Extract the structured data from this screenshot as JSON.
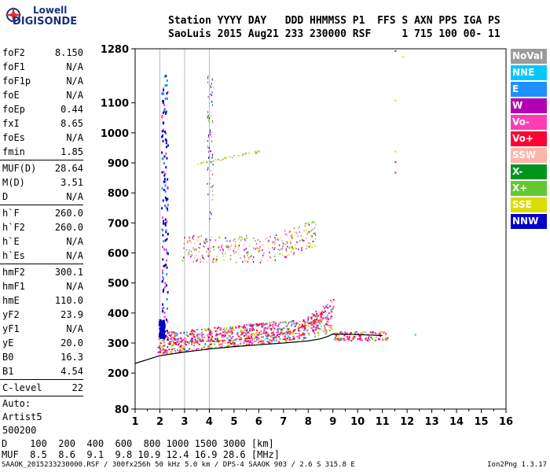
{
  "logo": {
    "line1": "Lowell",
    "line2": "DIGISONDE"
  },
  "header": {
    "labels": "Station YYYY DAY   DDD HHMMSS P1  FFS S AXN PPS IGA PS",
    "values": "SaoLuis 2015 Aug21 233 230000 RSF     1 715 100 00- 11"
  },
  "params": [
    {
      "name": "foF2",
      "value": "8.150"
    },
    {
      "name": "foF1",
      "value": "N/A"
    },
    {
      "name": "foF1p",
      "value": "N/A"
    },
    {
      "name": "foE",
      "value": "N/A"
    },
    {
      "name": "foEp",
      "value": "0.44"
    },
    {
      "name": "fxI",
      "value": "8.65"
    },
    {
      "name": "foEs",
      "value": "N/A"
    },
    {
      "name": "fmin",
      "value": "1.85"
    },
    {
      "sep": true
    },
    {
      "name": "MUF(D)",
      "value": "28.64"
    },
    {
      "name": "M(D)",
      "value": "3.51"
    },
    {
      "name": "D",
      "value": "N/A"
    },
    {
      "sep": true
    },
    {
      "name": "h`F",
      "value": "260.0"
    },
    {
      "name": "h`F2",
      "value": "260.0"
    },
    {
      "name": "h`E",
      "value": "N/A"
    },
    {
      "name": "h`Es",
      "value": "N/A"
    },
    {
      "sep": true
    },
    {
      "name": "hmF2",
      "value": "300.1"
    },
    {
      "name": "hmF1",
      "value": "N/A"
    },
    {
      "name": "hmE",
      "value": "110.0"
    },
    {
      "name": "yF2",
      "value": "23.9"
    },
    {
      "name": "yF1",
      "value": "N/A"
    },
    {
      "name": "yE",
      "value": "20.0"
    },
    {
      "name": "B0",
      "value": "16.3"
    },
    {
      "name": "B1",
      "value": "4.54"
    },
    {
      "sep": true
    },
    {
      "name": "C-level",
      "value": "22"
    },
    {
      "sep": true
    }
  ],
  "auto": [
    "Auto:",
    "Artist5",
    "500200"
  ],
  "legend": [
    {
      "label": "NoVal",
      "color": "#9b9b9b"
    },
    {
      "label": "NNE",
      "color": "#00c8ff"
    },
    {
      "label": "E",
      "color": "#1e90ff"
    },
    {
      "label": "W",
      "color": "#b400b4"
    },
    {
      "label": "Vo-",
      "color": "#ff3cb4"
    },
    {
      "label": "Vo+",
      "color": "#ff0032"
    },
    {
      "label": "SSW",
      "color": "#ffb4aa"
    },
    {
      "label": "X-",
      "color": "#00961e"
    },
    {
      "label": "X+",
      "color": "#64c832"
    },
    {
      "label": "SSE",
      "color": "#dcdc00"
    },
    {
      "label": "NNW",
      "color": "#0000c8"
    }
  ],
  "muf_table": {
    "line1": "D    100  200  400  600  800 1000 1500 3000 [km]",
    "line2": "MUF  8.5  8.6  9.1  9.8 10.9 12.4 16.9 28.6 [MHz]"
  },
  "footer": "SAAOK_2015233230000.RSF / 300fx256h 50 kHz 5.0 km / DPS-4 SAAOK 903 / 2.6 S 315.8 E",
  "version": "Ion2Png 1.3.17",
  "chart_data": {
    "type": "scatter",
    "x_ticks": [
      1,
      2,
      3,
      4,
      5,
      6,
      7,
      8,
      9,
      10,
      11,
      12,
      13,
      14,
      15,
      16
    ],
    "y_ticks": [
      80,
      200,
      300,
      400,
      500,
      600,
      700,
      800,
      900,
      1000,
      1100,
      1280
    ],
    "xlim": [
      1,
      16
    ],
    "ylim": [
      80,
      1280
    ],
    "grid": false,
    "legend_position": "right",
    "fitted_trace_x": [
      1.0,
      2.0,
      3.0,
      4.0,
      5.0,
      6.0,
      7.0,
      8.0,
      8.5,
      8.8,
      9.0,
      10.0,
      11.0
    ],
    "fitted_trace_y": [
      232,
      258,
      270,
      280,
      288,
      294,
      300,
      307,
      314,
      322,
      330,
      328,
      325
    ],
    "virtual_trace_x": [
      1.9,
      2.5,
      3.0,
      4.0,
      5.0,
      6.0,
      7.0,
      7.5,
      8.0,
      8.3,
      8.5,
      8.7
    ],
    "virtual_trace_y": [
      285,
      300,
      306,
      306,
      310,
      318,
      332,
      345,
      362,
      380,
      398,
      420
    ]
  }
}
